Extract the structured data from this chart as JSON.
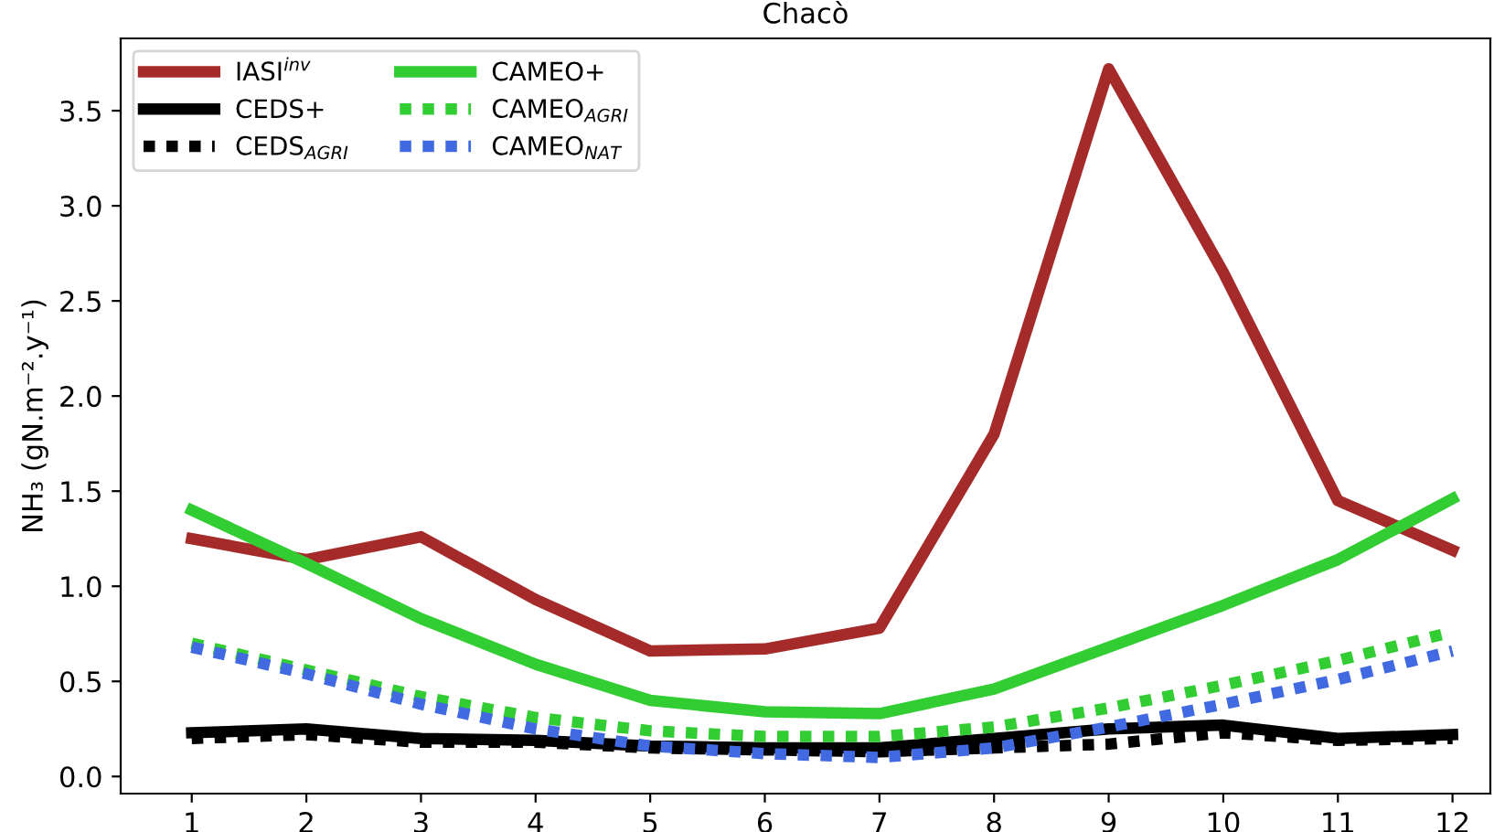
{
  "chart_data": {
    "type": "line",
    "title": "Chacò",
    "ylabel": "NH₃ (gN.m⁻².y⁻¹)",
    "x": [
      1,
      2,
      3,
      4,
      5,
      6,
      7,
      8,
      9,
      10,
      11,
      12
    ],
    "xlim": [
      0.38,
      12.33
    ],
    "ylim": [
      -0.09,
      3.88
    ],
    "xticks": [
      1,
      2,
      3,
      4,
      5,
      6,
      7,
      8,
      9,
      10,
      11,
      12
    ],
    "yticks": [
      {
        "value": 0,
        "label": "0.0"
      },
      {
        "value": 0.5,
        "label": "0.5"
      },
      {
        "value": 1,
        "label": "1.0"
      },
      {
        "value": 1.5,
        "label": "1.5"
      },
      {
        "value": 2,
        "label": "2.0"
      },
      {
        "value": 2.5,
        "label": "2.5"
      },
      {
        "value": 3,
        "label": "3.0"
      },
      {
        "value": 3.5,
        "label": "3.5"
      }
    ],
    "grid": false,
    "legend": "top left",
    "marker": "none",
    "series": [
      {
        "name": "IASI$^{inv}$",
        "color": "#a52a2a",
        "line_style": "solid",
        "values": [
          1.25,
          1.14,
          1.26,
          0.93,
          0.66,
          0.67,
          0.78,
          1.8,
          3.72,
          2.65,
          1.45,
          1.19
        ]
      },
      {
        "name": "CEDS+",
        "color": "#000000",
        "line_style": "solid",
        "values": [
          0.23,
          0.25,
          0.2,
          0.19,
          0.16,
          0.15,
          0.15,
          0.2,
          0.25,
          0.27,
          0.2,
          0.22
        ]
      },
      {
        "name": "CEDS$_{AGRI}$",
        "color": "#000000",
        "line_style": "dotted",
        "values": [
          0.2,
          0.22,
          0.18,
          0.18,
          0.15,
          0.14,
          0.13,
          0.15,
          0.17,
          0.23,
          0.19,
          0.2
        ]
      },
      {
        "name": "CAMEO+",
        "color": "#32cd32",
        "line_style": "solid",
        "values": [
          1.4,
          1.12,
          0.83,
          0.59,
          0.4,
          0.34,
          0.33,
          0.46,
          0.68,
          0.9,
          1.14,
          1.46
        ]
      },
      {
        "name": "CAMEO$_{AGRI}$",
        "color": "#32cd32",
        "line_style": "dotted",
        "values": [
          0.7,
          0.56,
          0.42,
          0.31,
          0.24,
          0.21,
          0.21,
          0.26,
          0.36,
          0.48,
          0.61,
          0.76
        ]
      },
      {
        "name": "CAMEO$_{NAT}$",
        "color": "#4169e1",
        "line_style": "dotted",
        "values": [
          0.68,
          0.54,
          0.38,
          0.25,
          0.16,
          0.12,
          0.1,
          0.15,
          0.26,
          0.38,
          0.51,
          0.66
        ]
      }
    ]
  }
}
